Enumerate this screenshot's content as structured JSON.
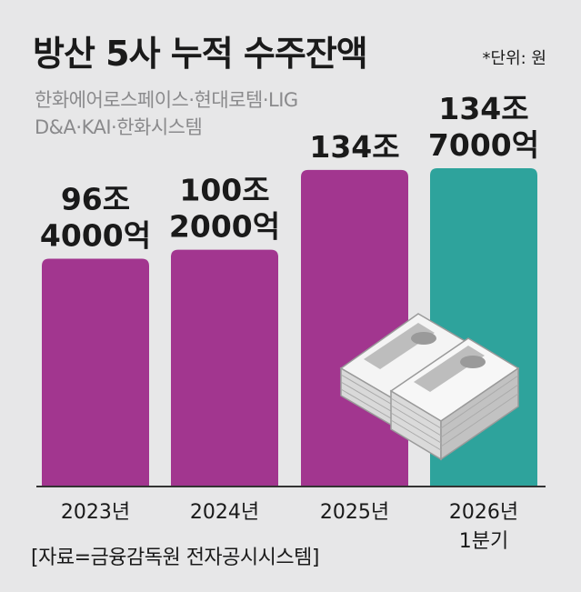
{
  "header": {
    "title": "방산 5사 누적 수주잔액",
    "unit": "*단위: 원",
    "subtitle": "한화에어로스페이스·현대로템·LIG D&A·KAI·한화시스템"
  },
  "source": "[자료=금융감독원 전자공시시스템]",
  "colors": {
    "bar_default": "#a2368f",
    "bar_highlight": "#2ea39c",
    "axis": "#333333",
    "background": "#e7e7e8"
  },
  "chart_data": {
    "type": "bar",
    "categories": [
      [
        "2023년"
      ],
      [
        "2024년"
      ],
      [
        "2025년"
      ],
      [
        "2026년",
        "1분기"
      ]
    ],
    "values": [
      96.4,
      100.2,
      134,
      134.7
    ],
    "value_unit": "조원",
    "data_labels": [
      [
        "96조",
        "4000억"
      ],
      [
        "100조",
        "2000억"
      ],
      [
        "134조"
      ],
      [
        "134조",
        "7000억"
      ]
    ],
    "highlight_index": 3,
    "icon": "money-stack-icon"
  }
}
